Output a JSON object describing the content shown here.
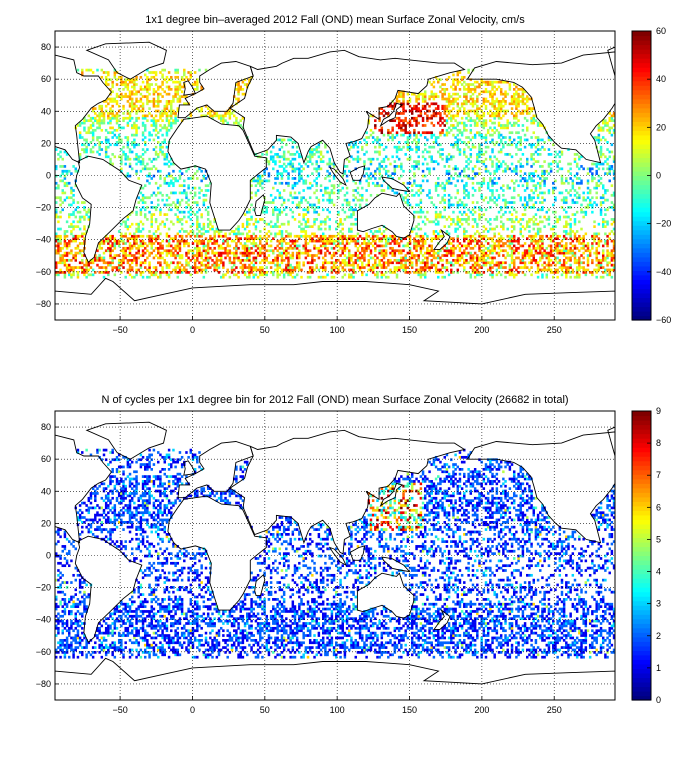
{
  "chart_data": [
    {
      "type": "heatmap",
      "title": "1x1 degree bin–averaged 2012 Fall (OND) mean Surface Zonal Velocity, cm/s",
      "xlim": [
        -95,
        292
      ],
      "ylim": [
        -90,
        90
      ],
      "x_ticks": [
        -50,
        0,
        50,
        100,
        150,
        200,
        250
      ],
      "y_ticks": [
        80,
        60,
        40,
        20,
        0,
        -20,
        -40,
        -60,
        -80
      ],
      "grid": true,
      "colorbar": {
        "min": -60,
        "max": 60,
        "ticks": [
          60,
          40,
          20,
          0,
          -20,
          -40,
          -60
        ],
        "colormap": "jet",
        "placement": "right"
      },
      "data_density": {
        "description": "scattered 1x1 degree bins over ocean; strong eastward (red) flow in the Kuroshio extension near 35N 140-160E and along the Antarctic Circumpolar Current 40-60S; westward (blue) near the equator",
        "regions": [
          {
            "lon_range": [
              130,
              170
            ],
            "lat_range": [
              30,
              42
            ],
            "value_range": [
              20,
              60
            ]
          },
          {
            "lon_range": [
              -60,
              290
            ],
            "lat_range": [
              -62,
              -38
            ],
            "value_range": [
              10,
              50
            ]
          },
          {
            "lon_range": [
              -60,
              290
            ],
            "lat_range": [
              -5,
              5
            ],
            "value_range": [
              -40,
              10
            ]
          }
        ]
      }
    },
    {
      "type": "heatmap",
      "title": "N of cycles per 1x1 degree bin for 2012 Fall (OND) mean Surface Zonal Velocity (26682 in total)",
      "xlim": [
        -95,
        292
      ],
      "ylim": [
        -90,
        90
      ],
      "x_ticks": [
        -50,
        0,
        50,
        100,
        150,
        200,
        250
      ],
      "y_ticks": [
        80,
        60,
        40,
        20,
        0,
        -20,
        -40,
        -60,
        -80
      ],
      "grid": true,
      "colorbar": {
        "min": 0,
        "max": 9,
        "ticks": [
          9,
          8,
          7,
          6,
          5,
          4,
          3,
          2,
          1,
          0
        ],
        "colormap": "jet",
        "placement": "right"
      },
      "data_density": {
        "description": "mostly 1-2 cycles per bin (blue); higher counts (red) near Japan and the Kuroshio region",
        "regions": [
          {
            "lon_range": [
              120,
              160
            ],
            "lat_range": [
              15,
              45
            ],
            "value_range": [
              3,
              9
            ]
          },
          {
            "lon_range": [
              -60,
              290
            ],
            "lat_range": [
              -62,
              62
            ],
            "value_range": [
              1,
              3
            ]
          }
        ]
      }
    }
  ]
}
